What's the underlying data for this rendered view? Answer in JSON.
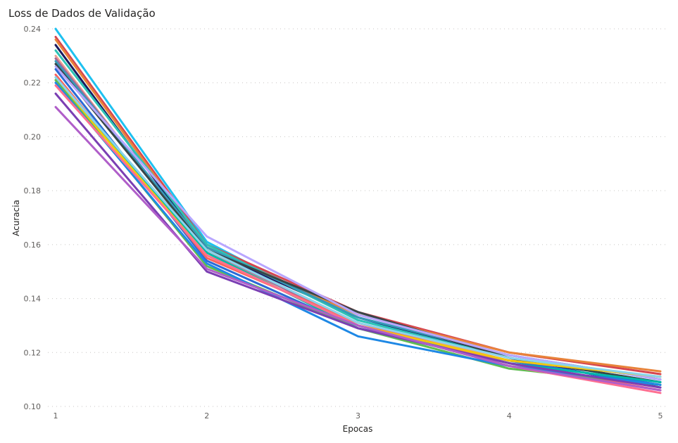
{
  "chart_data": {
    "type": "line",
    "title": "Loss de Dados de Validação",
    "xlabel": "Epocas",
    "ylabel": "Acuracia",
    "x": [
      1,
      2,
      3,
      4,
      5
    ],
    "x_tick_labels": [
      "1",
      "2",
      "3",
      "4",
      "5"
    ],
    "ylim": [
      0.1,
      0.24
    ],
    "y_ticks": [
      0.1,
      0.12,
      0.14,
      0.16,
      0.18,
      0.2,
      0.22,
      0.24
    ],
    "y_tick_labels": [
      "0.10",
      "0.12",
      "0.14",
      "0.16",
      "0.18",
      "0.20",
      "0.22",
      "0.24"
    ],
    "grid": true,
    "series": [
      {
        "color": "#1ec1f0",
        "values": [
          0.24,
          0.161,
          0.132,
          0.119,
          0.11
        ]
      },
      {
        "color": "#d64550",
        "values": [
          0.237,
          0.16,
          0.135,
          0.12,
          0.112
        ]
      },
      {
        "color": "#e8833a",
        "values": [
          0.236,
          0.159,
          0.134,
          0.12,
          0.113
        ]
      },
      {
        "color": "#1a1a5e",
        "values": [
          0.234,
          0.158,
          0.133,
          0.118,
          0.107
        ]
      },
      {
        "color": "#2dc3b5",
        "values": [
          0.232,
          0.16,
          0.132,
          0.118,
          0.109
        ]
      },
      {
        "color": "#f0a090",
        "values": [
          0.23,
          0.157,
          0.131,
          0.117,
          0.111
        ]
      },
      {
        "color": "#a66999",
        "values": [
          0.229,
          0.158,
          0.13,
          0.117,
          0.108
        ]
      },
      {
        "color": "#3599b8",
        "values": [
          0.228,
          0.159,
          0.133,
          0.119,
          0.11
        ]
      },
      {
        "color": "#374649",
        "values": [
          0.227,
          0.158,
          0.135,
          0.118,
          0.109
        ]
      },
      {
        "color": "#b8a6ff",
        "values": [
          0.226,
          0.163,
          0.134,
          0.119,
          0.11
        ]
      },
      {
        "color": "#2b6bd6",
        "values": [
          0.225,
          0.154,
          0.129,
          0.117,
          0.108
        ]
      },
      {
        "color": "#fd625e",
        "values": [
          0.223,
          0.155,
          0.131,
          0.116,
          0.106
        ]
      },
      {
        "color": "#01b8aa",
        "values": [
          0.222,
          0.157,
          0.129,
          0.116,
          0.109
        ]
      },
      {
        "color": "#f2c80f",
        "values": [
          0.221,
          0.156,
          0.13,
          0.117,
          0.111
        ]
      },
      {
        "color": "#8ad4eb",
        "values": [
          0.222,
          0.158,
          0.131,
          0.118,
          0.111
        ]
      },
      {
        "color": "#5fbd52",
        "values": [
          0.221,
          0.152,
          0.129,
          0.114,
          0.108
        ]
      },
      {
        "color": "#1e88e5",
        "values": [
          0.22,
          0.153,
          0.126,
          0.115,
          0.108
        ]
      },
      {
        "color": "#ff6f91",
        "values": [
          0.219,
          0.156,
          0.13,
          0.115,
          0.105
        ]
      },
      {
        "color": "#7b3fb3",
        "values": [
          0.216,
          0.15,
          0.129,
          0.116,
          0.107
        ]
      },
      {
        "color": "#b05ec9",
        "values": [
          0.211,
          0.151,
          0.13,
          0.115,
          0.106
        ]
      }
    ]
  }
}
